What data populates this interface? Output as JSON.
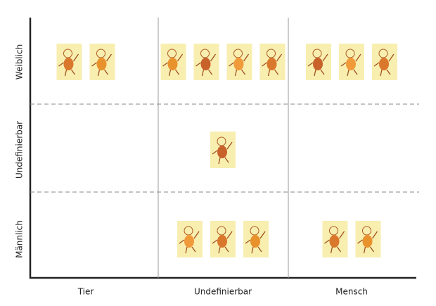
{
  "columns": [
    "Tier",
    "Undefinierbar",
    "Mensch"
  ],
  "rows": [
    {
      "label": "Weiblich",
      "counts": [
        2,
        4,
        3
      ]
    },
    {
      "label": "Undefinierbar",
      "counts": [
        0,
        1,
        0
      ]
    },
    {
      "label": "Männlich",
      "counts": [
        0,
        3,
        2
      ]
    }
  ]
}
